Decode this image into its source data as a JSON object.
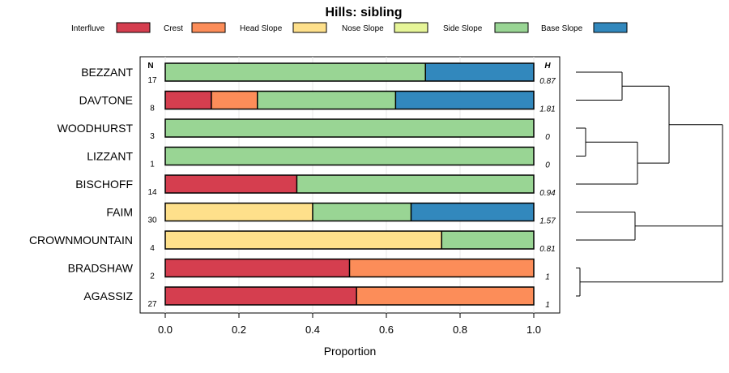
{
  "chart_data": {
    "type": "bar",
    "stacked": true,
    "orientation": "horizontal",
    "title": "Hills: sibling",
    "xlabel": "Proportion",
    "xlim": [
      0,
      1
    ],
    "xticks": [
      "0.0",
      "0.2",
      "0.4",
      "0.6",
      "0.8",
      "1.0"
    ],
    "grid": true,
    "n_header": "N",
    "h_header": "H",
    "legend_position": "top",
    "legend": [
      {
        "name": "Interfluve",
        "color": "#D53E4F"
      },
      {
        "name": "Crest",
        "color": "#FC8D59"
      },
      {
        "name": "Head Slope",
        "color": "#FEE08B"
      },
      {
        "name": "Nose Slope",
        "color": "#E6F598"
      },
      {
        "name": "Side Slope",
        "color": "#99D594"
      },
      {
        "name": "Base Slope",
        "color": "#3288BD"
      }
    ],
    "categories": [
      "BEZZANT",
      "DAVTONE",
      "WOODHURST",
      "LIZZANT",
      "BISCHOFF",
      "FAIM",
      "CROWNMOUNTAIN",
      "BRADSHAW",
      "AGASSIZ"
    ],
    "n": [
      "17",
      "8",
      "3",
      "1",
      "14",
      "30",
      "4",
      "2",
      "27"
    ],
    "h": [
      "0.87",
      "1.81",
      "0",
      "0",
      "0.94",
      "1.57",
      "0.81",
      "1",
      "1"
    ],
    "series": [
      {
        "name": "Interfluve",
        "values": [
          0,
          0.125,
          0,
          0,
          0.357,
          0,
          0,
          0.5,
          0.519
        ]
      },
      {
        "name": "Crest",
        "values": [
          0,
          0.125,
          0,
          0,
          0,
          0,
          0,
          0.5,
          0.481
        ]
      },
      {
        "name": "Head Slope",
        "values": [
          0,
          0,
          0,
          0,
          0,
          0.4,
          0.75,
          0,
          0
        ]
      },
      {
        "name": "Nose Slope",
        "values": [
          0,
          0,
          0,
          0,
          0,
          0,
          0,
          0,
          0
        ]
      },
      {
        "name": "Side Slope",
        "values": [
          0.706,
          0.375,
          1,
          1,
          0.643,
          0.267,
          0.25,
          0,
          0
        ]
      },
      {
        "name": "Base Slope",
        "values": [
          0.294,
          0.375,
          0,
          0,
          0,
          0.333,
          0,
          0,
          0
        ]
      }
    ],
    "dendrogram": {
      "description": "hierarchical clustering of categories",
      "merges": [
        {
          "left": "WOODHURST",
          "right": "LIZZANT",
          "height": 0.1
        },
        {
          "left": "BRADSHAW",
          "right": "AGASSIZ",
          "height": 0.05
        },
        {
          "left": "BEZZANT",
          "right": "DAVTONE",
          "height": 0.5
        },
        {
          "left": "FAIM",
          "right": "CROWNMOUNTAIN",
          "height": 0.6
        },
        {
          "left": "WOODHURST+LIZZANT",
          "right": "BISCHOFF",
          "height": 0.6
        },
        {
          "left": "BEZZANT+DAVTONE",
          "right": "WOODHURST+LIZZANT+BISCHOFF",
          "height": 0.9
        },
        {
          "left": "FAIM+CROWNMOUNTAIN",
          "right": "BRADSHAW+AGASSIZ",
          "height": 1.4
        },
        {
          "left": "top",
          "right": "bottom",
          "height": 1.4
        }
      ]
    }
  }
}
